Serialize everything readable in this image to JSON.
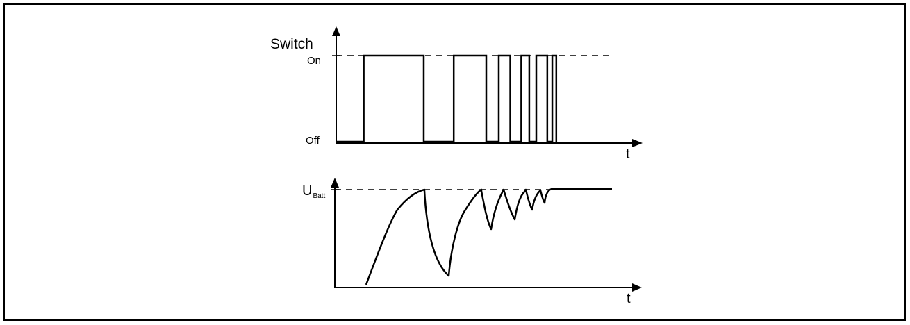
{
  "top_chart": {
    "y_title": "Switch",
    "y_on": "On",
    "y_off": "Off",
    "x_label": "t",
    "segments": [
      {
        "start": 0.55,
        "end": 1.75
      },
      {
        "start": 2.35,
        "end": 3.0
      },
      {
        "start": 3.25,
        "end": 3.48
      },
      {
        "start": 3.7,
        "end": 3.86
      },
      {
        "start": 4.0,
        "end": 4.22
      },
      {
        "start": 4.32,
        "end": 4.4
      }
    ],
    "off_until": 0.55,
    "trace_end": 4.4
  },
  "bottom_chart": {
    "y_label_main": "U",
    "y_label_sub": "Batt",
    "x_label": "t"
  },
  "colors": {
    "ink": "#000000",
    "background": "#ffffff"
  }
}
